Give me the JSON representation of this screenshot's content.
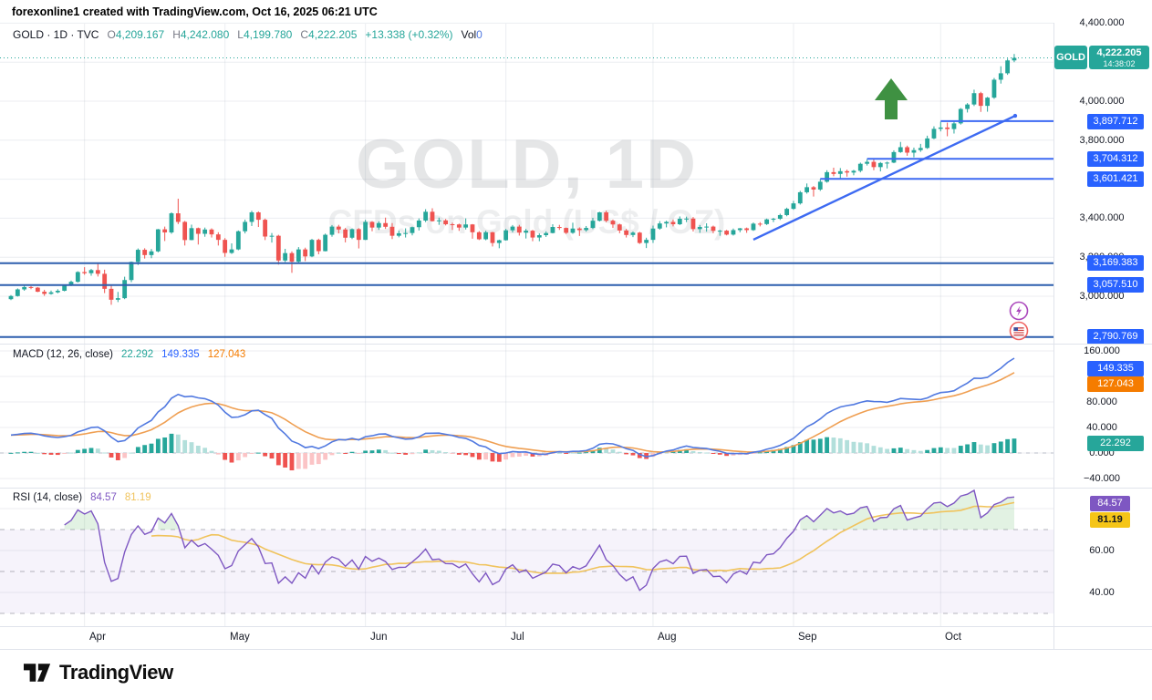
{
  "attribution": "forexonline1 created with TradingView.com, Oct 16, 2025 06:21 UTC",
  "legend": {
    "title": "GOLD · 1D · TVC",
    "open_label": "O",
    "open": "4,209.167",
    "high_label": "H",
    "high": "4,242.080",
    "low_label": "L",
    "low": "4,199.780",
    "close_label": "C",
    "close": "4,222.205",
    "change": "+13.338 (+0.32%)",
    "volume_label": "Vol",
    "volume": "0"
  },
  "watermark": {
    "line1": "GOLD, 1D",
    "line2": "CFDs on Gold (US$ / OZ)"
  },
  "price_axis": [
    "4,400.000",
    "4,000.000",
    "3,800.000",
    "3,400.000",
    "3,200.000",
    "3,000.000"
  ],
  "macd_axis": [
    "160.000",
    "80.000",
    "40.000",
    "0.000",
    "−40.000"
  ],
  "rsi_axis": [
    "60.00",
    "40.00"
  ],
  "price_levels": [
    "3,897.712",
    "3,704.312",
    "3,601.421",
    "3,169.383",
    "3,057.510",
    "2,790.769"
  ],
  "last_price_label": {
    "ticker": "GOLD",
    "price": "4,222.205",
    "time": "14:38:02"
  },
  "macd_panel": {
    "title": "MACD (12, 26, close)",
    "hist": "22.292",
    "macd": "149.335",
    "signal": "127.043"
  },
  "rsi_panel": {
    "title": "RSI (14, close)",
    "rsi": "84.57",
    "ma": "81.19"
  },
  "time_axis": [
    "Apr",
    "May",
    "Jun",
    "Jul",
    "Aug",
    "Sep",
    "Oct"
  ],
  "logo_text": "TradingView",
  "colors": {
    "up": "#26a69a",
    "down": "#ef5350",
    "macd_line": "#5179e0",
    "signal_line": "#ef9f52",
    "hist_grow": "#26a69a",
    "hist_fall": "#b2dfdb",
    "hist_neg": "#ef5350",
    "hist_neg_rise": "#fbc4c6",
    "rsi_line": "#7e57c2",
    "rsi_ma": "#f0c35c",
    "rsi_band": "rgba(126,87,194,0.07)",
    "rsi_fill": "rgba(76,175,80,0.16)",
    "level_badge": "#2962ff",
    "level_line": "#2d5fae",
    "ray_line": "#3d6af2",
    "macd_badge": "#2962ff",
    "signal_badge": "#f57c00",
    "hist_badge": "#26a69a",
    "rsi_badge": "#7e57c2",
    "rsi_ma_badge": "#f5c518",
    "arrow": "#3f9142",
    "grid": "rgba(150,160,175,0.18)"
  },
  "chart_data": {
    "type": "candlestick",
    "symbol": "GOLD",
    "timeframe": "1D",
    "exchange": "TVC",
    "title": "GOLD, 1D — CFDs on Gold (US$ / OZ)",
    "price_axis_range": [
      2757,
      4402
    ],
    "macd_axis_range": [
      -51,
      170
    ],
    "rsi_axis_range": [
      24,
      95
    ],
    "last_price": 4222.205,
    "month_start_indices": [
      11,
      32,
      53,
      74,
      96,
      117,
      139
    ],
    "ohlc": [
      [
        2985,
        3006,
        2980,
        3001
      ],
      [
        3001,
        3040,
        2998,
        3035
      ],
      [
        3035,
        3055,
        3028,
        3047
      ],
      [
        3047,
        3052,
        3036,
        3044
      ],
      [
        3044,
        3047,
        3021,
        3023
      ],
      [
        3023,
        3033,
        3002,
        3012
      ],
      [
        3012,
        3029,
        3008,
        3020
      ],
      [
        3020,
        3036,
        3015,
        3028
      ],
      [
        3028,
        3059,
        3025,
        3057
      ],
      [
        3057,
        3080,
        3052,
        3074
      ],
      [
        3074,
        3128,
        3070,
        3124
      ],
      [
        3124,
        3149,
        3110,
        3118
      ],
      [
        3118,
        3140,
        3105,
        3134
      ],
      [
        3134,
        3168,
        3101,
        3115
      ],
      [
        3115,
        3136,
        3016,
        3038
      ],
      [
        3038,
        3055,
        2956,
        2982
      ],
      [
        2982,
        3022,
        2970,
        2990
      ],
      [
        2990,
        3100,
        2985,
        3083
      ],
      [
        3083,
        3178,
        3072,
        3176
      ],
      [
        3176,
        3245,
        3160,
        3238
      ],
      [
        3238,
        3246,
        3193,
        3211
      ],
      [
        3211,
        3242,
        3195,
        3230
      ],
      [
        3230,
        3345,
        3225,
        3343
      ],
      [
        3343,
        3357,
        3283,
        3327
      ],
      [
        3327,
        3430,
        3320,
        3425
      ],
      [
        3425,
        3500,
        3370,
        3381
      ],
      [
        3381,
        3386,
        3260,
        3288
      ],
      [
        3288,
        3367,
        3287,
        3349
      ],
      [
        3349,
        3352,
        3265,
        3320
      ],
      [
        3320,
        3352,
        3305,
        3342
      ],
      [
        3342,
        3348,
        3301,
        3317
      ],
      [
        3317,
        3328,
        3260,
        3289
      ],
      [
        3289,
        3298,
        3202,
        3222
      ],
      [
        3222,
        3271,
        3217,
        3240
      ],
      [
        3240,
        3337,
        3236,
        3333
      ],
      [
        3333,
        3393,
        3322,
        3381
      ],
      [
        3381,
        3438,
        3360,
        3430
      ],
      [
        3430,
        3435,
        3355,
        3392
      ],
      [
        3392,
        3398,
        3288,
        3306
      ],
      [
        3306,
        3324,
        3275,
        3310
      ],
      [
        3310,
        3315,
        3162,
        3183
      ],
      [
        3183,
        3243,
        3175,
        3221
      ],
      [
        3221,
        3230,
        3120,
        3177
      ],
      [
        3177,
        3252,
        3170,
        3240
      ],
      [
        3240,
        3249,
        3180,
        3204
      ],
      [
        3204,
        3294,
        3200,
        3289
      ],
      [
        3289,
        3295,
        3215,
        3231
      ],
      [
        3231,
        3321,
        3230,
        3315
      ],
      [
        3315,
        3365,
        3305,
        3357
      ],
      [
        3357,
        3366,
        3322,
        3342
      ],
      [
        3342,
        3350,
        3276,
        3300
      ],
      [
        3300,
        3348,
        3293,
        3344
      ],
      [
        3344,
        3349,
        3245,
        3289
      ],
      [
        3289,
        3392,
        3288,
        3381
      ],
      [
        3381,
        3385,
        3333,
        3352
      ],
      [
        3352,
        3384,
        3340,
        3375
      ],
      [
        3375,
        3403,
        3345,
        3356
      ],
      [
        3356,
        3375,
        3293,
        3310
      ],
      [
        3310,
        3337,
        3302,
        3323
      ],
      [
        3323,
        3348,
        3301,
        3324
      ],
      [
        3324,
        3357,
        3312,
        3354
      ],
      [
        3354,
        3399,
        3337,
        3388
      ],
      [
        3388,
        3446,
        3380,
        3433
      ],
      [
        3433,
        3451,
        3383,
        3385
      ],
      [
        3385,
        3403,
        3366,
        3389
      ],
      [
        3389,
        3396,
        3363,
        3369
      ],
      [
        3369,
        3377,
        3340,
        3368
      ],
      [
        3368,
        3372,
        3335,
        3352
      ],
      [
        3352,
        3399,
        3342,
        3368
      ],
      [
        3368,
        3370,
        3295,
        3328
      ],
      [
        3328,
        3334,
        3288,
        3292
      ],
      [
        3292,
        3336,
        3287,
        3328
      ],
      [
        3328,
        3330,
        3255,
        3273
      ],
      [
        3273,
        3290,
        3246,
        3287
      ],
      [
        3287,
        3345,
        3285,
        3338
      ],
      [
        3338,
        3365,
        3327,
        3357
      ],
      [
        3357,
        3366,
        3311,
        3326
      ],
      [
        3326,
        3345,
        3296,
        3336
      ],
      [
        3336,
        3340,
        3282,
        3301
      ],
      [
        3301,
        3322,
        3282,
        3313
      ],
      [
        3313,
        3333,
        3304,
        3324
      ],
      [
        3324,
        3369,
        3322,
        3355
      ],
      [
        3355,
        3366,
        3340,
        3350
      ],
      [
        3350,
        3352,
        3319,
        3325
      ],
      [
        3325,
        3377,
        3320,
        3347
      ],
      [
        3347,
        3353,
        3309,
        3339
      ],
      [
        3339,
        3360,
        3331,
        3350
      ],
      [
        3350,
        3402,
        3344,
        3387
      ],
      [
        3387,
        3433,
        3383,
        3430
      ],
      [
        3430,
        3439,
        3379,
        3387
      ],
      [
        3387,
        3393,
        3350,
        3368
      ],
      [
        3368,
        3372,
        3323,
        3337
      ],
      [
        3337,
        3345,
        3301,
        3314
      ],
      [
        3314,
        3332,
        3303,
        3326
      ],
      [
        3326,
        3330,
        3268,
        3273
      ],
      [
        3273,
        3300,
        3247,
        3289
      ],
      [
        3289,
        3362,
        3273,
        3347
      ],
      [
        3347,
        3385,
        3341,
        3373
      ],
      [
        3373,
        3387,
        3353,
        3381
      ],
      [
        3381,
        3393,
        3358,
        3369
      ],
      [
        3369,
        3409,
        3365,
        3397
      ],
      [
        3397,
        3408,
        3380,
        3398
      ],
      [
        3398,
        3406,
        3332,
        3344
      ],
      [
        3344,
        3365,
        3325,
        3355
      ],
      [
        3355,
        3374,
        3331,
        3357
      ],
      [
        3357,
        3362,
        3323,
        3335
      ],
      [
        3335,
        3340,
        3310,
        3336
      ],
      [
        3336,
        3340,
        3312,
        3316
      ],
      [
        3316,
        3347,
        3311,
        3339
      ],
      [
        3339,
        3350,
        3328,
        3348
      ],
      [
        3348,
        3352,
        3325,
        3339
      ],
      [
        3339,
        3378,
        3335,
        3372
      ],
      [
        3372,
        3380,
        3358,
        3370
      ],
      [
        3370,
        3398,
        3365,
        3394
      ],
      [
        3394,
        3402,
        3380,
        3397
      ],
      [
        3397,
        3423,
        3391,
        3416
      ],
      [
        3416,
        3454,
        3410,
        3448
      ],
      [
        3448,
        3489,
        3443,
        3476
      ],
      [
        3476,
        3540,
        3470,
        3533
      ],
      [
        3533,
        3578,
        3526,
        3559
      ],
      [
        3559,
        3565,
        3511,
        3547
      ],
      [
        3547,
        3600,
        3540,
        3587
      ],
      [
        3587,
        3646,
        3582,
        3636
      ],
      [
        3636,
        3659,
        3615,
        3627
      ],
      [
        3627,
        3657,
        3605,
        3641
      ],
      [
        3641,
        3649,
        3613,
        3634
      ],
      [
        3634,
        3648,
        3620,
        3643
      ],
      [
        3643,
        3685,
        3635,
        3679
      ],
      [
        3679,
        3703,
        3670,
        3689
      ],
      [
        3689,
        3707,
        3646,
        3662
      ],
      [
        3662,
        3688,
        3640,
        3683
      ],
      [
        3683,
        3690,
        3655,
        3685
      ],
      [
        3685,
        3748,
        3682,
        3739
      ],
      [
        3739,
        3791,
        3735,
        3764
      ],
      [
        3764,
        3772,
        3720,
        3736
      ],
      [
        3736,
        3762,
        3712,
        3749
      ],
      [
        3749,
        3781,
        3740,
        3760
      ],
      [
        3760,
        3823,
        3755,
        3809
      ],
      [
        3809,
        3871,
        3805,
        3858
      ],
      [
        3858,
        3895,
        3845,
        3865
      ],
      [
        3865,
        3890,
        3820,
        3857
      ],
      [
        3857,
        3897,
        3834,
        3886
      ],
      [
        3886,
        3965,
        3880,
        3960
      ],
      [
        3960,
        3990,
        3942,
        3983
      ],
      [
        3983,
        4059,
        3975,
        4041
      ],
      [
        4041,
        4048,
        3945,
        3976
      ],
      [
        3976,
        4022,
        3946,
        4018
      ],
      [
        4018,
        4119,
        4012,
        4110
      ],
      [
        4110,
        4179,
        4090,
        4143
      ],
      [
        4143,
        4218,
        4135,
        4209
      ],
      [
        4209,
        4242,
        4200,
        4222
      ]
    ],
    "indicators": {
      "macd": {
        "fast": 12,
        "slow": 26,
        "signal": 9,
        "values": {
          "histogram": 22.292,
          "macd": 149.335,
          "signal": 127.043
        }
      },
      "rsi": {
        "length": 14,
        "ma_length": 14,
        "overbought": 70,
        "middle": 50,
        "oversold": 30,
        "values": {
          "rsi": 84.57,
          "ma": 81.19
        }
      }
    },
    "drawings": {
      "horizontal_lines": [
        3169.383,
        3057.51,
        2790.769
      ],
      "horizontal_rays": [
        {
          "price": 3897.712,
          "from_index": 139
        },
        {
          "price": 3704.312,
          "from_index": 128
        },
        {
          "price": 3601.421,
          "from_index": 121
        }
      ],
      "trendline": {
        "from": [
          111,
          3290
        ],
        "to": [
          150,
          3925
        ]
      },
      "arrow_up_marker": {
        "near_index": 132
      }
    }
  }
}
